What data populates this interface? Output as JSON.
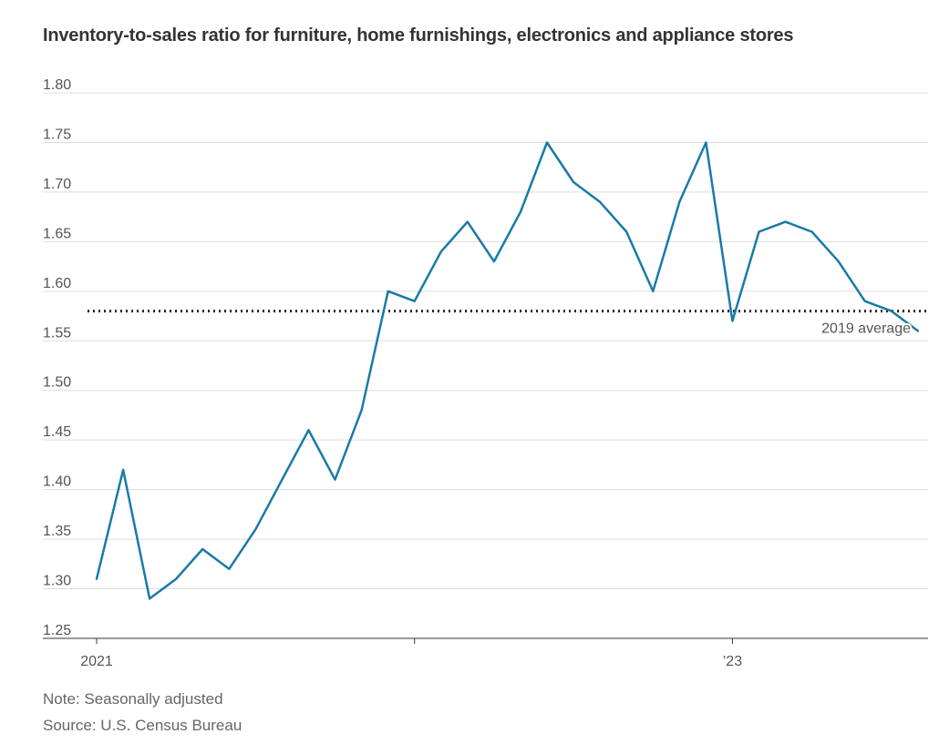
{
  "chart_data": {
    "type": "line",
    "title": "Inventory-to-sales ratio for furniture, home furnishings, electronics and appliance stores",
    "xlabel": "",
    "ylabel": "",
    "ylim": [
      1.25,
      1.8
    ],
    "yticks": [
      "1.80",
      "1.75",
      "1.70",
      "1.65",
      "1.60",
      "1.55",
      "1.50",
      "1.45",
      "1.40",
      "1.35",
      "1.30",
      "1.25"
    ],
    "xticks": [
      {
        "month_index": 0,
        "label": "2021"
      },
      {
        "month_index": 12,
        "label": ""
      },
      {
        "month_index": 24,
        "label": "’23"
      }
    ],
    "series": [
      {
        "color": "#1a7aa8",
        "start": "2021-01",
        "values": [
          1.31,
          1.42,
          1.29,
          1.31,
          1.34,
          1.32,
          1.36,
          1.41,
          1.46,
          1.41,
          1.48,
          1.6,
          1.59,
          1.64,
          1.67,
          1.63,
          1.68,
          1.75,
          1.71,
          1.69,
          1.66,
          1.6,
          1.69,
          1.75,
          1.57,
          1.66,
          1.67,
          1.66,
          1.63,
          1.59,
          1.58,
          1.56
        ]
      }
    ],
    "reference_line": {
      "value": 1.58,
      "label": "2019 average",
      "style": "dotted",
      "color": "#222222"
    },
    "grid": true
  },
  "footer": {
    "note": "Note: Seasonally adjusted",
    "source": "Source: U.S. Census Bureau"
  }
}
